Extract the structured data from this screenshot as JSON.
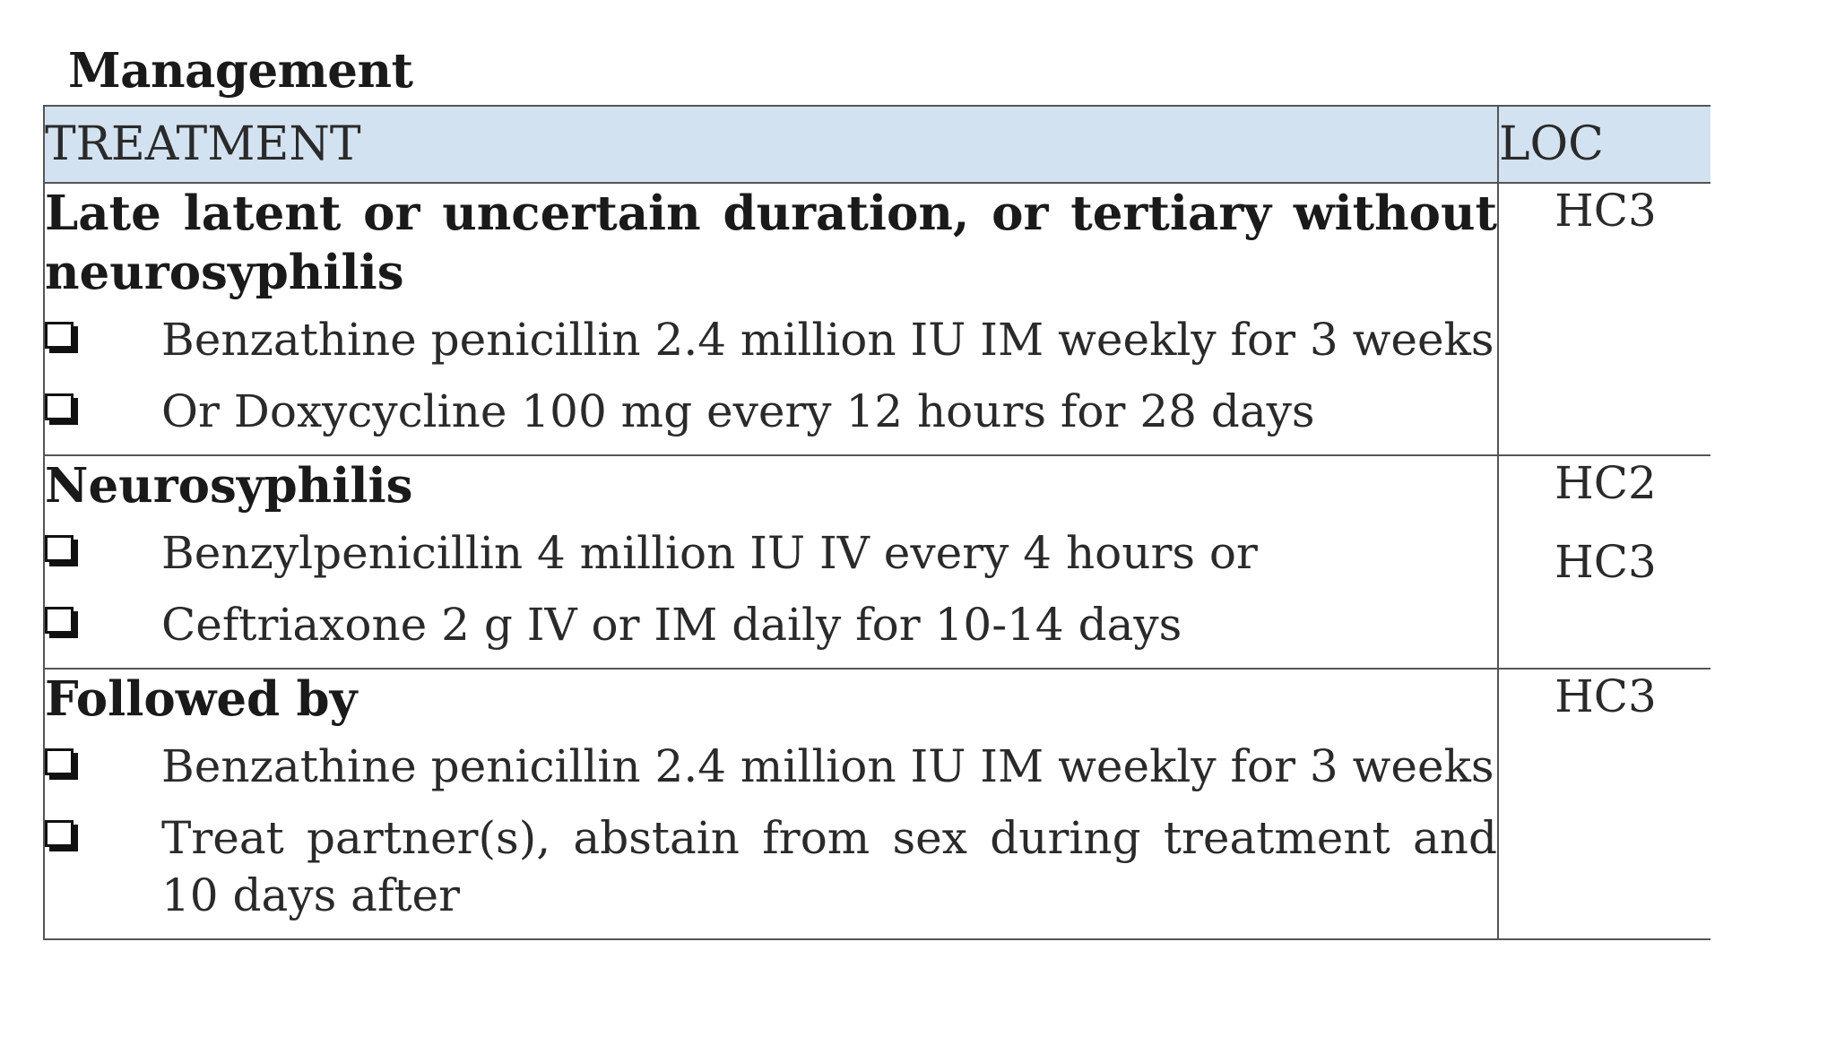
{
  "heading": "Management",
  "table": {
    "headers": {
      "treatment": "TREATMENT",
      "loc": "LOC"
    },
    "groups": [
      {
        "title": "Late latent or uncertain duration, or tertiary without neurosyphilis",
        "items": [
          "Benzathine penicillin 2.4 million IU IM weekly for 3 weeks",
          "Or Doxycycline 100 mg every 12 hours for 28 days"
        ],
        "loc": [
          "HC3"
        ]
      },
      {
        "title": "Neurosyphilis",
        "items": [
          "Benzylpenicillin 4 million IU IV every 4 hours or",
          "Ceftriaxone 2 g IV or IM daily for 10-14 days"
        ],
        "loc": [
          "HC2",
          "HC3"
        ]
      },
      {
        "title": "Followed by",
        "items": [
          "Benzathine penicillin 2.4 million IU IM weekly for 3 weeks",
          "Treat partner(s), abstain from sex during treatment and 10 days after"
        ],
        "loc": [
          "HC3"
        ]
      }
    ]
  },
  "icons": {
    "checkbox": "checkbox-icon"
  }
}
